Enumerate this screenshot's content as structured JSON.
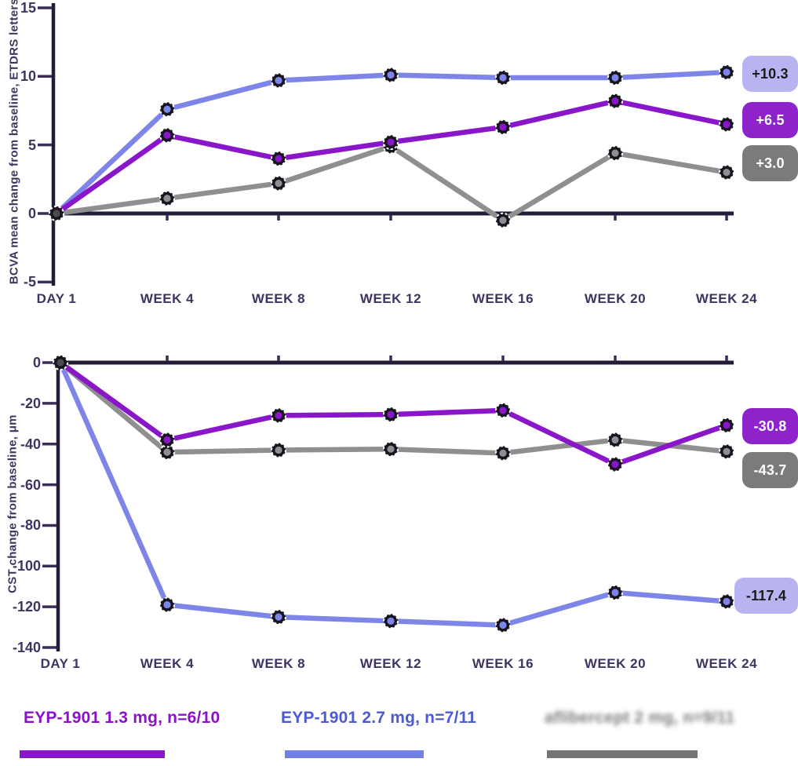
{
  "chart_data": [
    {
      "type": "line",
      "title": "",
      "ylabel": "BCVA mean change from baseline, ETDRS letters",
      "xlabel": "",
      "categories": [
        "DAY 1",
        "WEEK 4",
        "WEEK 8",
        "WEEK 12",
        "WEEK 16",
        "WEEK 20",
        "WEEK 24"
      ],
      "yticks": [
        15,
        10,
        5,
        0,
        -5
      ],
      "ylim": [
        -6,
        15
      ],
      "grid": false,
      "legend_position": "bottom",
      "series": [
        {
          "name": "EYP-1901 1.3 mg, n=6/10",
          "color": "#8a16c9",
          "values": [
            0,
            5.7,
            4.0,
            5.2,
            6.3,
            8.2,
            6.5
          ],
          "end_label": "+6.5"
        },
        {
          "name": "EYP-1901 2.7 mg, n=7/11",
          "color": "#7d85e8",
          "values": [
            0,
            7.6,
            9.7,
            10.1,
            9.9,
            9.9,
            10.3
          ],
          "end_label": "+10.3"
        },
        {
          "name": "aflibercept 2 mg, n=9/11",
          "color": "#8f8f8f",
          "values": [
            0,
            1.1,
            2.2,
            4.9,
            -0.5,
            4.4,
            3.0
          ],
          "end_label": "+3.0"
        }
      ]
    },
    {
      "type": "line",
      "title": "",
      "ylabel": "CST change from baseline, μm",
      "xlabel": "",
      "categories": [
        "DAY 1",
        "WEEK 4",
        "WEEK 8",
        "WEEK 12",
        "WEEK 16",
        "WEEK 20",
        "WEEK 24"
      ],
      "yticks": [
        0,
        -20,
        -40,
        -60,
        -80,
        -100,
        -120,
        -140
      ],
      "ylim": [
        -140,
        0
      ],
      "grid": false,
      "legend_position": "bottom",
      "series": [
        {
          "name": "EYP-1901 1.3 mg, n=6/10",
          "color": "#8a16c9",
          "values": [
            0,
            -38,
            -26,
            -25.5,
            -23.5,
            -50,
            -30.8
          ],
          "end_label": "-30.8"
        },
        {
          "name": "EYP-1901 2.7 mg, n=7/11",
          "color": "#7d85e8",
          "values": [
            0,
            -119,
            -125,
            -127,
            -129,
            -113,
            -117.4
          ],
          "end_label": "-117.4"
        },
        {
          "name": "aflibercept 2 mg, n=9/11",
          "color": "#8f8f8f",
          "values": [
            0,
            -44,
            -43,
            -42.5,
            -44.5,
            -38,
            -43.7
          ],
          "end_label": "-43.7"
        }
      ]
    }
  ],
  "legend": {
    "items": [
      {
        "label": "EYP-1901 1.3 mg, n=6/10",
        "text_color": "#8a10cb",
        "swatch_color": "#8a16c9"
      },
      {
        "label": "EYP-1901 2.7 mg, n=7/11",
        "text_color": "#4c5bd0",
        "swatch_color": "#7280e6"
      },
      {
        "label": "aflibercept 2 mg, n=9/11",
        "text_color": "#6e6e6e",
        "swatch_color": "#757575"
      }
    ]
  },
  "colors": {
    "background": "#ffffff",
    "axis": "#241b38",
    "tick": "#3a2e58",
    "tick_text": "#3f3360",
    "marker_ring": "#17131f",
    "marker_dash": "#ffffff",
    "baseline_point": "#4c4c4c",
    "pill_lavender_bg": "#b7b4f1",
    "pill_lavender_text": "#1b1b1b",
    "pill_purple_bg": "#8e22cb",
    "pill_gray_bg": "#7b7b7b",
    "pill_light_text": "#ffffff"
  }
}
